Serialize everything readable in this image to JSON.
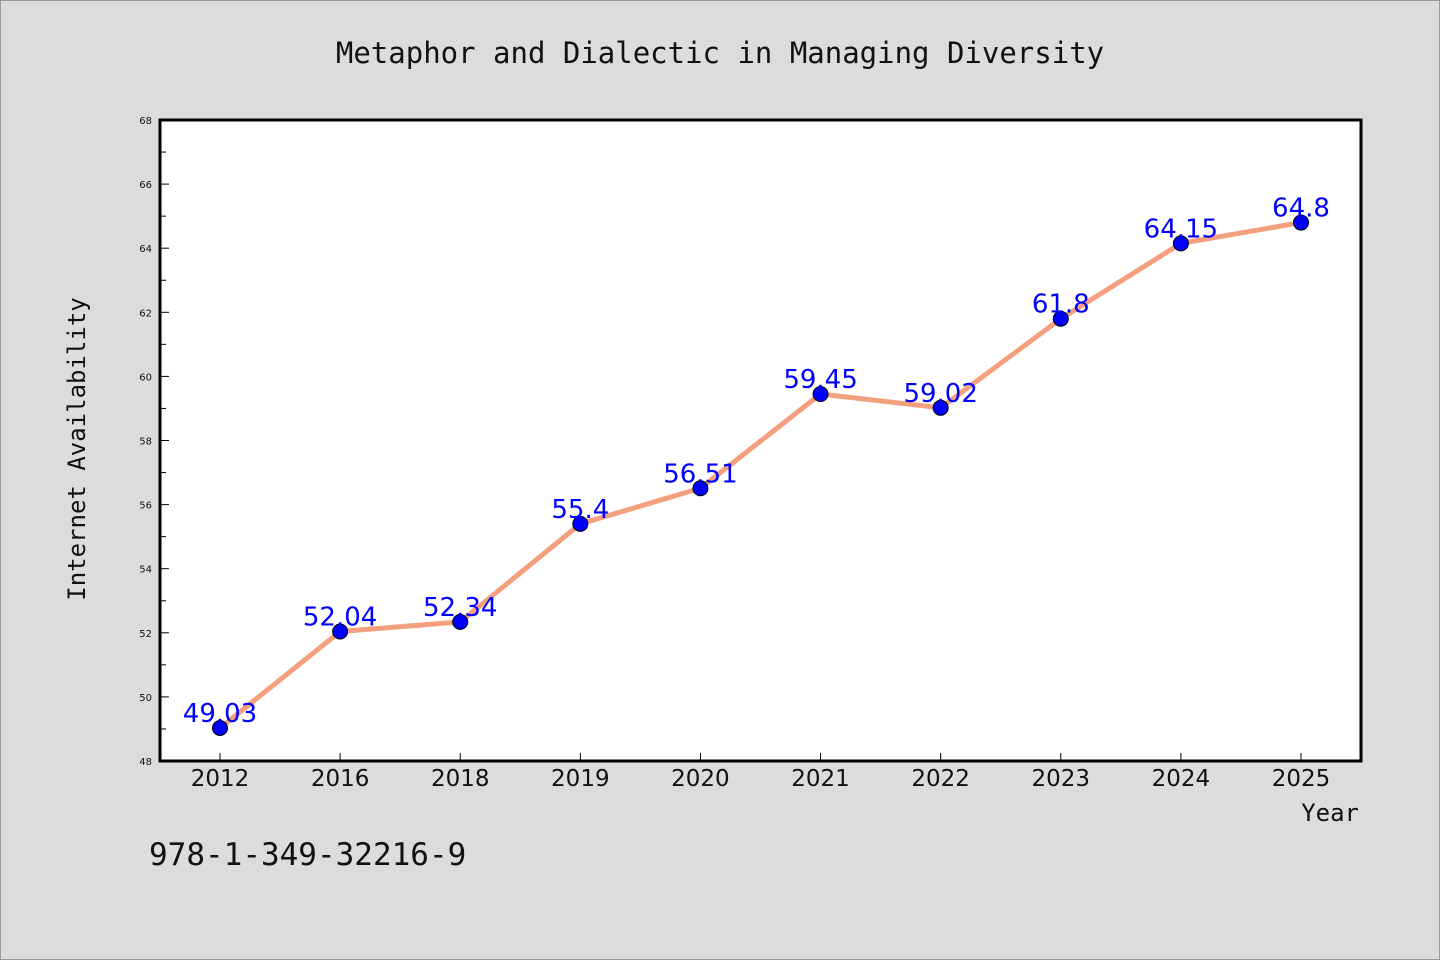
{
  "chart_data": {
    "type": "line",
    "title": "Metaphor and Dialectic in Managing Diversity",
    "xlabel": "Year",
    "ylabel": "Internet Availability",
    "footnote": "978-1-349-32216-9",
    "categories": [
      "2012",
      "2016",
      "2018",
      "2019",
      "2020",
      "2021",
      "2022",
      "2023",
      "2024",
      "2025"
    ],
    "series": [
      {
        "values": [
          49.03,
          52.04,
          52.34,
          55.4,
          56.51,
          59.45,
          59.02,
          61.8,
          64.15,
          64.8
        ],
        "labels": [
          "49.03",
          "52.04",
          "52.34",
          "55.4",
          "56.51",
          "59.45",
          "59.02",
          "61.8",
          "64.15",
          "64.8"
        ],
        "line_color": "#f4a07f",
        "marker_color": "#0000ff",
        "label_color": "#0000ff"
      }
    ],
    "ylim": [
      48,
      68
    ],
    "yticks": [
      48,
      50,
      52,
      54,
      56,
      58,
      60,
      62,
      64,
      66,
      68
    ],
    "grid": false,
    "legend": "none"
  }
}
